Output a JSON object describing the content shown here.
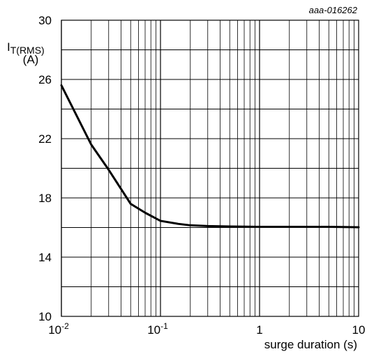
{
  "figure_id": "aaa-016262",
  "chart_data": {
    "type": "line",
    "x_scale": "log",
    "xlim": [
      0.01,
      10
    ],
    "ylim": [
      10,
      30
    ],
    "grid": true,
    "ylabel": {
      "main": "I",
      "sub": "T(RMS)",
      "unit": "(A)"
    },
    "xlabel": "surge duration (s)",
    "yticks": [
      {
        "value": 10,
        "label": "10"
      },
      {
        "value": 14,
        "label": "14"
      },
      {
        "value": 18,
        "label": "18"
      },
      {
        "value": 22,
        "label": "22"
      },
      {
        "value": 26,
        "label": "26"
      },
      {
        "value": 30,
        "label": "30"
      }
    ],
    "xticks": [
      {
        "value": 0.01,
        "base": "10",
        "exp": "-2"
      },
      {
        "value": 0.1,
        "base": "10",
        "exp": "-1"
      },
      {
        "value": 1,
        "base": "1",
        "exp": ""
      },
      {
        "value": 10,
        "base": "10",
        "exp": ""
      }
    ],
    "series": [
      {
        "x": [
          0.01,
          0.02,
          0.03,
          0.05,
          0.07,
          0.1,
          0.15,
          0.2,
          0.3,
          0.5,
          1,
          2,
          5,
          10
        ],
        "y": [
          25.6,
          21.6,
          19.9,
          17.6,
          17.0,
          16.45,
          16.25,
          16.15,
          16.1,
          16.07,
          16.05,
          16.05,
          16.05,
          16.02
        ]
      }
    ]
  }
}
